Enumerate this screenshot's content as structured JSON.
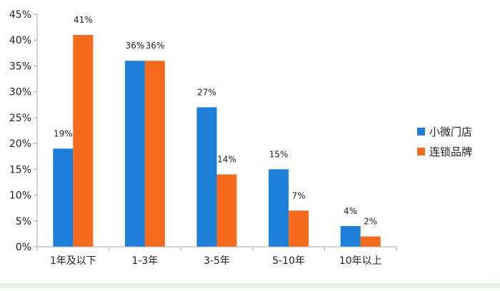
{
  "chart_data": {
    "type": "bar",
    "title": "",
    "xlabel": "",
    "ylabel": "",
    "categories": [
      "1年及以下",
      "1-3年",
      "3-5年",
      "5-10年",
      "10年以上"
    ],
    "series": [
      {
        "name": "小微门店",
        "color": "#1e7fd8",
        "values": [
          19,
          36,
          27,
          15,
          4
        ],
        "labels": [
          "19%",
          "36%",
          "27%",
          "15%",
          "4%"
        ]
      },
      {
        "name": "连锁品牌",
        "color": "#f56a1c",
        "values": [
          41,
          36,
          14,
          7,
          2
        ],
        "labels": [
          "41%",
          "36%",
          "14%",
          "7%",
          "2%"
        ]
      }
    ],
    "ylim": [
      0,
      45
    ],
    "ytick_values": [
      0,
      5,
      10,
      15,
      20,
      25,
      30,
      35,
      40,
      45
    ],
    "ytick_labels": [
      "0%",
      "5%",
      "10%",
      "15%",
      "20%",
      "25%",
      "30%",
      "35%",
      "40%",
      "45%"
    ],
    "grid": false,
    "legend_position": "right"
  },
  "colors": {
    "axis": "#a6a6a6"
  }
}
